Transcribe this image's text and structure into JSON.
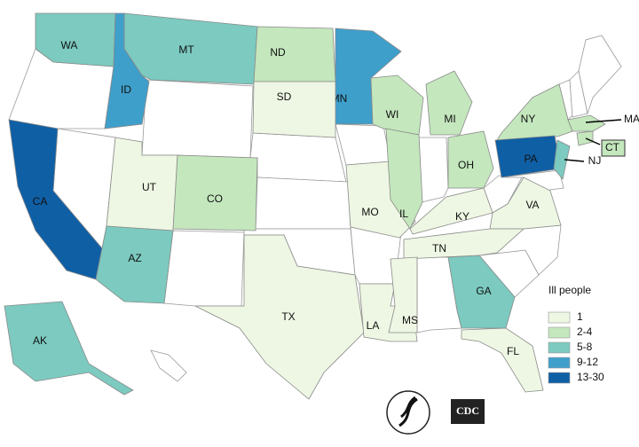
{
  "legend_title": "Ill people",
  "legend": [
    {
      "label": "1",
      "color": "#eef7e3"
    },
    {
      "label": "2-4",
      "color": "#c4e7bd"
    },
    {
      "label": "5-8",
      "color": "#7ccac0"
    },
    {
      "label": "9-12",
      "color": "#3f9fcb"
    },
    {
      "label": "13-30",
      "color": "#0f5fa5"
    }
  ],
  "states": [
    {
      "label": "WA",
      "category": 2
    },
    {
      "label": "MT",
      "category": 2
    },
    {
      "label": "ID",
      "category": 3
    },
    {
      "label": "ND",
      "category": 1
    },
    {
      "label": "MN",
      "category": 3
    },
    {
      "label": "SD",
      "category": 0
    },
    {
      "label": "WI",
      "category": 1
    },
    {
      "label": "MI",
      "category": 1
    },
    {
      "label": "NY",
      "category": 1
    },
    {
      "label": "MA",
      "category": 1
    },
    {
      "label": "CT",
      "category": 1
    },
    {
      "label": "PA",
      "category": 4
    },
    {
      "label": "NJ",
      "category": 2
    },
    {
      "label": "CA",
      "category": 4
    },
    {
      "label": "UT",
      "category": 0
    },
    {
      "label": "CO",
      "category": 1
    },
    {
      "label": "AZ",
      "category": 2
    },
    {
      "label": "MO",
      "category": 0
    },
    {
      "label": "IL",
      "category": 1
    },
    {
      "label": "OH",
      "category": 1
    },
    {
      "label": "KY",
      "category": 0
    },
    {
      "label": "VA",
      "category": 0
    },
    {
      "label": "TN",
      "category": 0
    },
    {
      "label": "TX",
      "category": 0
    },
    {
      "label": "LA",
      "category": 0
    },
    {
      "label": "MS",
      "category": 0
    },
    {
      "label": "GA",
      "category": 2
    },
    {
      "label": "FL",
      "category": 0
    },
    {
      "label": "AK",
      "category": 2
    }
  ],
  "logo_text": "CDC"
}
